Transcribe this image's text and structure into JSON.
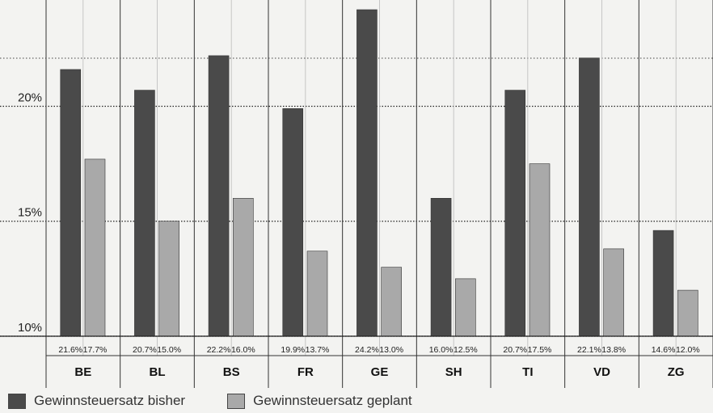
{
  "chart_data": {
    "type": "bar",
    "categories": [
      "BE",
      "BL",
      "BS",
      "FR",
      "GE",
      "SH",
      "TI",
      "VD",
      "ZG"
    ],
    "series": [
      {
        "name": "Gewinnsteuersatz bisher",
        "values": [
          21.6,
          20.7,
          22.2,
          19.9,
          24.2,
          16.0,
          20.7,
          22.1,
          14.6
        ],
        "labels": [
          "21.6%",
          "20.7%",
          "22.2%",
          "19.9%",
          "24.2%",
          "16.0%",
          "20.7%",
          "22.1%",
          "14.6%"
        ],
        "color": "#4a4a4a"
      },
      {
        "name": "Gewinnsteuersatz geplant",
        "values": [
          17.7,
          15.0,
          16.0,
          13.7,
          13.0,
          12.5,
          17.5,
          13.8,
          12.0
        ],
        "labels": [
          "17.7%",
          "15.0%",
          "16.0%",
          "13.7%",
          "13.0%",
          "12.5%",
          "17.5%",
          "13.8%",
          "12.0%"
        ],
        "color": "#a9a9a9"
      }
    ],
    "yticks": [
      10,
      15,
      20
    ],
    "ytick_labels": [
      "10%",
      "15%",
      "20%"
    ],
    "ylim": [
      10,
      24.2
    ],
    "grid": "horizontal dotted",
    "legend_position": "bottom-left"
  }
}
